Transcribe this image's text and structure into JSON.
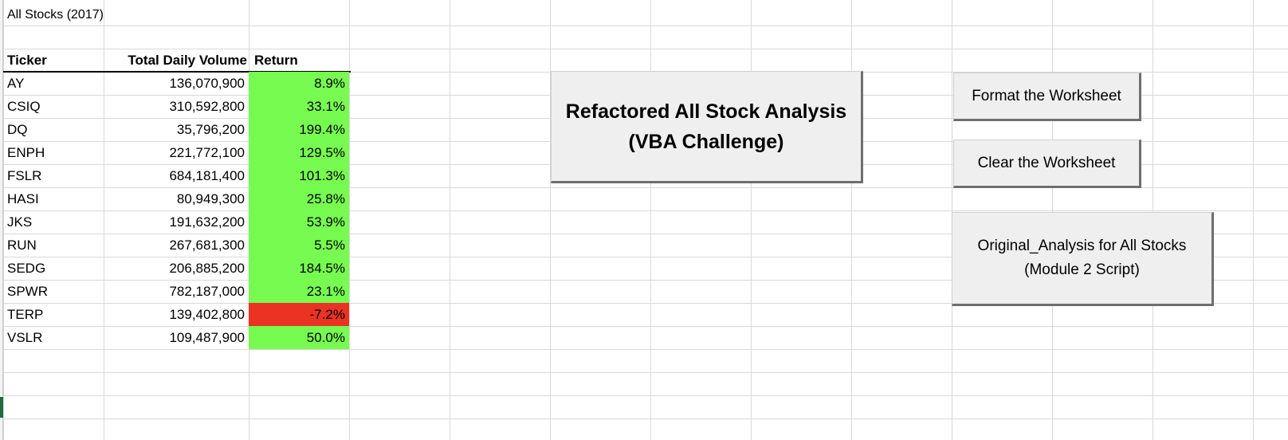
{
  "sheet": {
    "title": "All Stocks (2017)",
    "headers": [
      "Ticker",
      "Total Daily Volume",
      "Return"
    ],
    "colors": {
      "positive": "#77fb50",
      "negative": "#ea3323",
      "gridline": "#d9d9d9",
      "button_face": "#efefef"
    },
    "rows": [
      {
        "ticker": "AY",
        "volume": "136,070,900",
        "ret": "8.9%",
        "status": "positive"
      },
      {
        "ticker": "CSIQ",
        "volume": "310,592,800",
        "ret": "33.1%",
        "status": "positive"
      },
      {
        "ticker": "DQ",
        "volume": "35,796,200",
        "ret": "199.4%",
        "status": "positive"
      },
      {
        "ticker": "ENPH",
        "volume": "221,772,100",
        "ret": "129.5%",
        "status": "positive"
      },
      {
        "ticker": "FSLR",
        "volume": "684,181,400",
        "ret": "101.3%",
        "status": "positive"
      },
      {
        "ticker": "HASI",
        "volume": "80,949,300",
        "ret": "25.8%",
        "status": "positive"
      },
      {
        "ticker": "JKS",
        "volume": "191,632,200",
        "ret": "53.9%",
        "status": "positive"
      },
      {
        "ticker": "RUN",
        "volume": "267,681,300",
        "ret": "5.5%",
        "status": "positive"
      },
      {
        "ticker": "SEDG",
        "volume": "206,885,200",
        "ret": "184.5%",
        "status": "positive"
      },
      {
        "ticker": "SPWR",
        "volume": "782,187,000",
        "ret": "23.1%",
        "status": "positive"
      },
      {
        "ticker": "TERP",
        "volume": "139,402,800",
        "ret": "-7.2%",
        "status": "negative"
      },
      {
        "ticker": "VSLR",
        "volume": "109,487,900",
        "ret": "50.0%",
        "status": "positive"
      }
    ]
  },
  "buttons": {
    "refactored": "Refactored All Stock Analysis\n(VBA Challenge)",
    "format": "Format the Worksheet",
    "clear": "Clear the Worksheet",
    "original": "Original_Analysis for All Stocks\n(Module 2 Script)"
  }
}
